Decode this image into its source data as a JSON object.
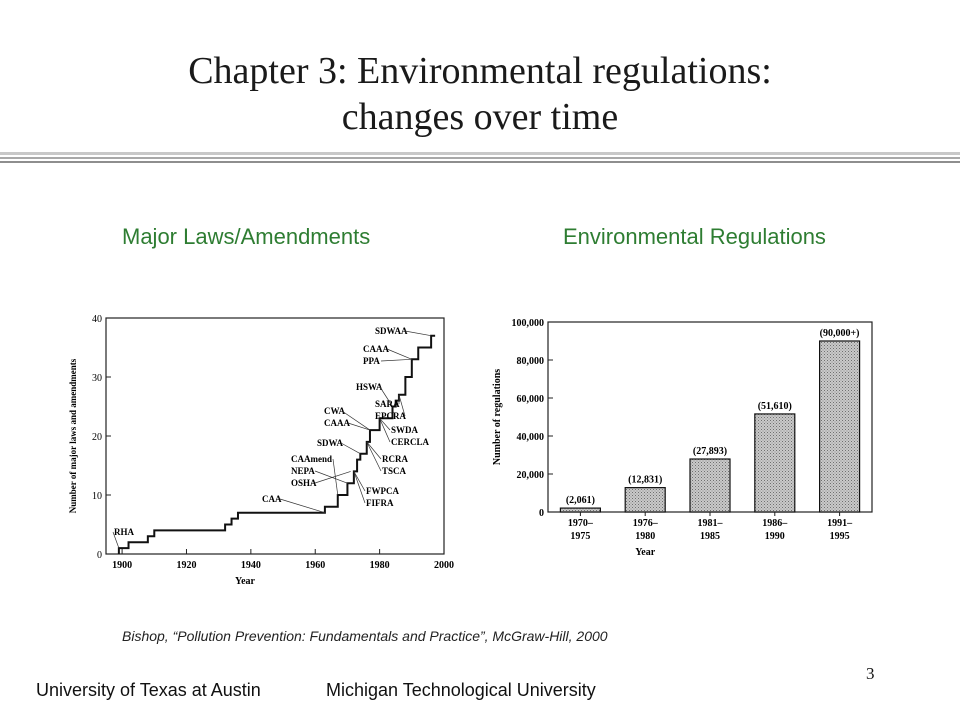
{
  "slide": {
    "title_line1": "Chapter 3: Environmental regulations:",
    "title_line2": "changes over time",
    "left_heading": "Major Laws/Amendments",
    "right_heading": "Environmental Regulations",
    "citation": "Bishop, “Pollution Prevention: Fundamentals and Practice”, McGraw-Hill, 2000",
    "footer_left": "University of Texas at Austin",
    "footer_right": "Michigan Technological University",
    "page_number": "3",
    "heading_color": "#2e7d32"
  },
  "chart_data": [
    {
      "type": "line",
      "xlabel": "Year",
      "ylabel": "Number of major laws and amendments",
      "xlim": [
        1895,
        2000
      ],
      "ylim": [
        0,
        40
      ],
      "xticks": [
        1900,
        1920,
        1940,
        1960,
        1980,
        2000
      ],
      "yticks": [
        0,
        10,
        20,
        30,
        40
      ],
      "step": true,
      "x": [
        1899,
        1902,
        1908,
        1910,
        1932,
        1934,
        1936,
        1963,
        1967,
        1970,
        1972,
        1973,
        1974,
        1976,
        1977,
        1980,
        1984,
        1985,
        1986,
        1988,
        1990,
        1992,
        1996
      ],
      "y": [
        1,
        2,
        3,
        4,
        5,
        6,
        7,
        8,
        10,
        12,
        14,
        16,
        17,
        19,
        21,
        23,
        25,
        26,
        27,
        30,
        33,
        35,
        37
      ],
      "annotations": [
        {
          "label": "RHA",
          "x": 1899,
          "y": 1
        },
        {
          "label": "CAA",
          "x": 1963,
          "y": 7
        },
        {
          "label": "CAAmend",
          "x": 1967,
          "y": 10
        },
        {
          "label": "NEPA",
          "x": 1970,
          "y": 12
        },
        {
          "label": "OSHA",
          "x": 1971,
          "y": 14
        },
        {
          "label": "FWPCA",
          "x": 1972,
          "y": 14
        },
        {
          "label": "FIFRA",
          "x": 1972,
          "y": 14
        },
        {
          "label": "SDWA",
          "x": 1974,
          "y": 17
        },
        {
          "label": "RCRA",
          "x": 1976,
          "y": 19
        },
        {
          "label": "TSCA",
          "x": 1976,
          "y": 19
        },
        {
          "label": "CWA",
          "x": 1977,
          "y": 21
        },
        {
          "label": "CAAA",
          "x": 1977,
          "y": 21
        },
        {
          "label": "SWDA",
          "x": 1980,
          "y": 23
        },
        {
          "label": "CERCLA",
          "x": 1980,
          "y": 23
        },
        {
          "label": "HSWA",
          "x": 1984,
          "y": 25
        },
        {
          "label": "SARA",
          "x": 1986,
          "y": 27
        },
        {
          "label": "EPCRA",
          "x": 1986,
          "y": 27
        },
        {
          "label": "CAAA",
          "x": 1990,
          "y": 33
        },
        {
          "label": "PPA",
          "x": 1990,
          "y": 33
        },
        {
          "label": "SDWAA",
          "x": 1996,
          "y": 37
        }
      ]
    },
    {
      "type": "bar",
      "xlabel": "Year",
      "ylabel": "Number of regulations",
      "ylim": [
        0,
        100000
      ],
      "yticks": [
        0,
        20000,
        40000,
        60000,
        80000,
        100000
      ],
      "ytick_labels": [
        "0",
        "20,000",
        "40,000",
        "60,000",
        "80,000",
        "100,000"
      ],
      "categories": [
        [
          "1970–",
          "1975"
        ],
        [
          "1976–",
          "1980"
        ],
        [
          "1981–",
          "1985"
        ],
        [
          "1986–",
          "1990"
        ],
        [
          "1991–",
          "1995"
        ]
      ],
      "values": [
        2061,
        12831,
        27893,
        51610,
        90000
      ],
      "value_labels": [
        "(2,061)",
        "(12,831)",
        "(27,893)",
        "(51,610)",
        "(90,000+)"
      ]
    }
  ]
}
